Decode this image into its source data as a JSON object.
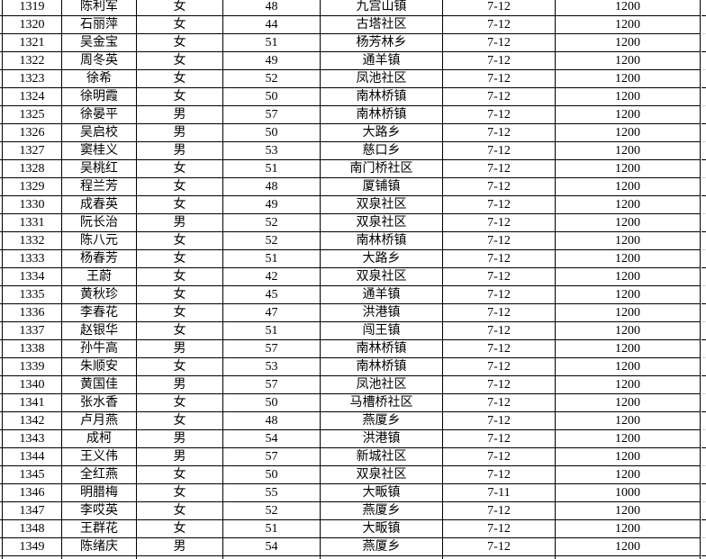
{
  "colors": {
    "background": "#ffffff",
    "grid_line": "#000000",
    "faint_grid_line": "#d9d9d9",
    "text": "#000000"
  },
  "table": {
    "rows": [
      {
        "id": "1319",
        "name": "陈利军",
        "gender": "女",
        "age": "48",
        "location": "九宫山镇",
        "date": "7-12",
        "amount": "1200"
      },
      {
        "id": "1320",
        "name": "石丽萍",
        "gender": "女",
        "age": "44",
        "location": "古塔社区",
        "date": "7-12",
        "amount": "1200"
      },
      {
        "id": "1321",
        "name": "吴金宝",
        "gender": "女",
        "age": "51",
        "location": "杨芳林乡",
        "date": "7-12",
        "amount": "1200"
      },
      {
        "id": "1322",
        "name": "周冬英",
        "gender": "女",
        "age": "49",
        "location": "通羊镇",
        "date": "7-12",
        "amount": "1200"
      },
      {
        "id": "1323",
        "name": "徐希",
        "gender": "女",
        "age": "52",
        "location": "凤池社区",
        "date": "7-12",
        "amount": "1200"
      },
      {
        "id": "1324",
        "name": "徐明霞",
        "gender": "女",
        "age": "50",
        "location": "南林桥镇",
        "date": "7-12",
        "amount": "1200"
      },
      {
        "id": "1325",
        "name": "徐晏平",
        "gender": "男",
        "age": "57",
        "location": "南林桥镇",
        "date": "7-12",
        "amount": "1200"
      },
      {
        "id": "1326",
        "name": "吴启校",
        "gender": "男",
        "age": "50",
        "location": "大路乡",
        "date": "7-12",
        "amount": "1200"
      },
      {
        "id": "1327",
        "name": "窦桂义",
        "gender": "男",
        "age": "53",
        "location": "慈口乡",
        "date": "7-12",
        "amount": "1200"
      },
      {
        "id": "1328",
        "name": "吴桃红",
        "gender": "女",
        "age": "51",
        "location": "南门桥社区",
        "date": "7-12",
        "amount": "1200"
      },
      {
        "id": "1329",
        "name": "程兰芳",
        "gender": "女",
        "age": "48",
        "location": "厦铺镇",
        "date": "7-12",
        "amount": "1200"
      },
      {
        "id": "1330",
        "name": "成春英",
        "gender": "女",
        "age": "49",
        "location": "双泉社区",
        "date": "7-12",
        "amount": "1200"
      },
      {
        "id": "1331",
        "name": "阮长治",
        "gender": "男",
        "age": "52",
        "location": "双泉社区",
        "date": "7-12",
        "amount": "1200"
      },
      {
        "id": "1332",
        "name": "陈八元",
        "gender": "女",
        "age": "52",
        "location": "南林桥镇",
        "date": "7-12",
        "amount": "1200"
      },
      {
        "id": "1333",
        "name": "杨春芳",
        "gender": "女",
        "age": "51",
        "location": "大路乡",
        "date": "7-12",
        "amount": "1200"
      },
      {
        "id": "1334",
        "name": "王蔚",
        "gender": "女",
        "age": "42",
        "location": "双泉社区",
        "date": "7-12",
        "amount": "1200"
      },
      {
        "id": "1335",
        "name": "黄秋珍",
        "gender": "女",
        "age": "45",
        "location": "通羊镇",
        "date": "7-12",
        "amount": "1200"
      },
      {
        "id": "1336",
        "name": "李春花",
        "gender": "女",
        "age": "47",
        "location": "洪港镇",
        "date": "7-12",
        "amount": "1200"
      },
      {
        "id": "1337",
        "name": "赵银华",
        "gender": "女",
        "age": "51",
        "location": "闯王镇",
        "date": "7-12",
        "amount": "1200"
      },
      {
        "id": "1338",
        "name": "孙牛高",
        "gender": "男",
        "age": "57",
        "location": "南林桥镇",
        "date": "7-12",
        "amount": "1200"
      },
      {
        "id": "1339",
        "name": "朱顺安",
        "gender": "女",
        "age": "53",
        "location": "南林桥镇",
        "date": "7-12",
        "amount": "1200"
      },
      {
        "id": "1340",
        "name": "黄国佳",
        "gender": "男",
        "age": "57",
        "location": "凤池社区",
        "date": "7-12",
        "amount": "1200"
      },
      {
        "id": "1341",
        "name": "张水香",
        "gender": "女",
        "age": "50",
        "location": "马槽桥社区",
        "date": "7-12",
        "amount": "1200"
      },
      {
        "id": "1342",
        "name": "卢月燕",
        "gender": "女",
        "age": "48",
        "location": "燕厦乡",
        "date": "7-12",
        "amount": "1200"
      },
      {
        "id": "1343",
        "name": "成柯",
        "gender": "男",
        "age": "54",
        "location": "洪港镇",
        "date": "7-12",
        "amount": "1200"
      },
      {
        "id": "1344",
        "name": "王义伟",
        "gender": "男",
        "age": "57",
        "location": "新城社区",
        "date": "7-12",
        "amount": "1200"
      },
      {
        "id": "1345",
        "name": "全红燕",
        "gender": "女",
        "age": "50",
        "location": "双泉社区",
        "date": "7-12",
        "amount": "1200"
      },
      {
        "id": "1346",
        "name": "明腊梅",
        "gender": "女",
        "age": "55",
        "location": "大畈镇",
        "date": "7-11",
        "amount": "1000"
      },
      {
        "id": "1347",
        "name": "李哎英",
        "gender": "女",
        "age": "52",
        "location": "燕厦乡",
        "date": "7-12",
        "amount": "1200"
      },
      {
        "id": "1348",
        "name": "王群花",
        "gender": "女",
        "age": "51",
        "location": "大畈镇",
        "date": "7-12",
        "amount": "1200"
      },
      {
        "id": "1349",
        "name": "陈绪庆",
        "gender": "男",
        "age": "54",
        "location": "燕厦乡",
        "date": "7-12",
        "amount": "1200"
      }
    ]
  }
}
